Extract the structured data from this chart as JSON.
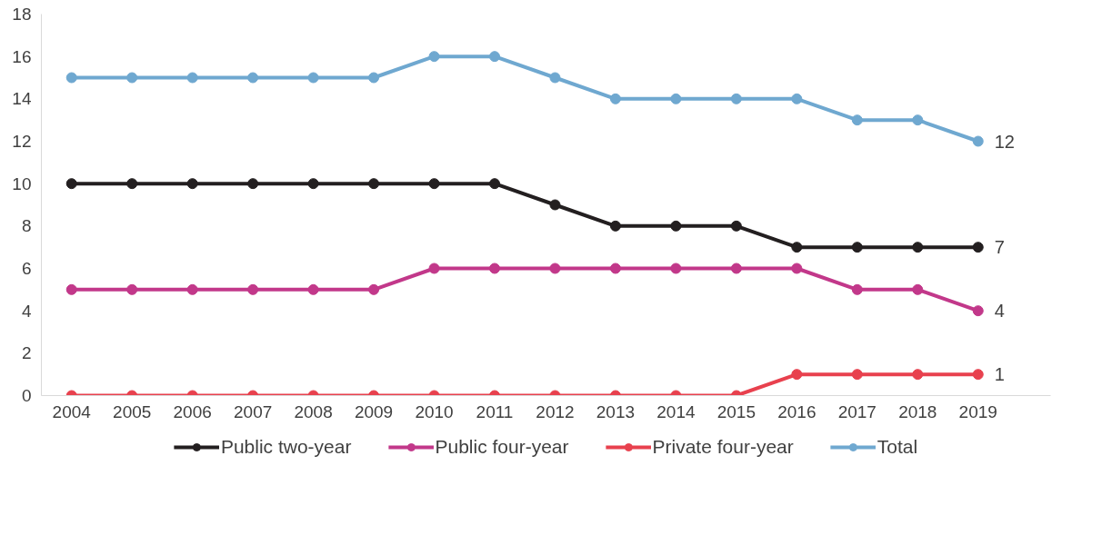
{
  "chart_data": {
    "type": "line",
    "categories": [
      "2004",
      "2005",
      "2006",
      "2007",
      "2008",
      "2009",
      "2010",
      "2011",
      "2012",
      "2013",
      "2014",
      "2015",
      "2016",
      "2017",
      "2018",
      "2019"
    ],
    "ylim": [
      0,
      18
    ],
    "yticks": [
      0,
      2,
      4,
      6,
      8,
      10,
      12,
      14,
      16,
      18
    ],
    "grid": false,
    "legend": "bottom",
    "marker": "circle",
    "line_style": "solid",
    "series": [
      {
        "name": "Public two-year",
        "color": "#231f20",
        "values": [
          10,
          10,
          10,
          10,
          10,
          10,
          10,
          10,
          9,
          8,
          8,
          8,
          7,
          7,
          7,
          7
        ],
        "value_labels": [
          null,
          null,
          null,
          null,
          null,
          null,
          null,
          null,
          null,
          null,
          null,
          null,
          null,
          null,
          null,
          "7"
        ]
      },
      {
        "name": "Public four-year",
        "color": "#c2388a",
        "values": [
          5,
          5,
          5,
          5,
          5,
          5,
          6,
          6,
          6,
          6,
          6,
          6,
          6,
          5,
          5,
          4
        ],
        "value_labels": [
          null,
          null,
          null,
          null,
          null,
          null,
          null,
          null,
          null,
          null,
          null,
          null,
          null,
          null,
          null,
          "4"
        ]
      },
      {
        "name": "Private four-year",
        "color": "#e8414e",
        "values": [
          0,
          0,
          0,
          0,
          0,
          0,
          0,
          0,
          0,
          0,
          0,
          0,
          1,
          1,
          1,
          1
        ],
        "value_labels": [
          null,
          null,
          null,
          null,
          null,
          null,
          null,
          null,
          null,
          null,
          null,
          null,
          null,
          null,
          null,
          "1"
        ]
      },
      {
        "name": "Total",
        "color": "#6fa8d0",
        "values": [
          15,
          15,
          15,
          15,
          15,
          15,
          16,
          16,
          15,
          14,
          14,
          14,
          14,
          13,
          13,
          12
        ],
        "value_labels": [
          null,
          null,
          null,
          null,
          null,
          null,
          null,
          null,
          null,
          null,
          null,
          null,
          null,
          null,
          null,
          "12"
        ]
      }
    ]
  }
}
